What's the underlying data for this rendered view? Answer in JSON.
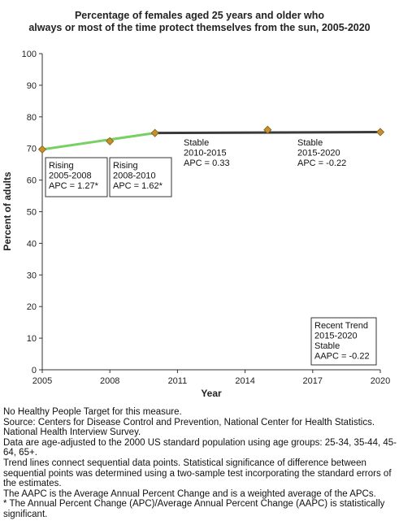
{
  "title": {
    "line1": "Percentage of females aged 25 years and older who",
    "line2": "always or most of the time protect themselves from the sun, 2005-2020"
  },
  "chart_data": {
    "type": "line",
    "xlabel": "Year",
    "ylabel": "Percent of adults",
    "xlim": [
      2005,
      2020
    ],
    "ylim": [
      0,
      100
    ],
    "xticks": [
      2005,
      2008,
      2011,
      2014,
      2017,
      2020
    ],
    "yticks": [
      0,
      10,
      20,
      30,
      40,
      50,
      60,
      70,
      80,
      90,
      100
    ],
    "grid": false,
    "points": {
      "x": [
        2005,
        2008,
        2010,
        2015,
        2020
      ],
      "y": [
        69.7,
        72.3,
        74.9,
        75.9,
        75.2
      ],
      "color": "#c8902a"
    },
    "trend_segments": [
      {
        "x": [
          2005,
          2010
        ],
        "y": [
          69.7,
          74.9
        ],
        "color": "#78d064"
      },
      {
        "x": [
          2010,
          2020
        ],
        "y": [
          74.9,
          75.2
        ],
        "color": "#3a3a3a"
      }
    ],
    "annotations": [
      {
        "lines": [
          "Rising",
          "2005-2008",
          "APC =  1.27*"
        ],
        "boxed": true
      },
      {
        "lines": [
          "Rising",
          "2008-2010",
          "APC =  1.62*"
        ],
        "boxed": true
      },
      {
        "lines": [
          "Stable",
          "2010-2015",
          "APC =  0.33"
        ],
        "boxed": true
      },
      {
        "lines": [
          "Stable",
          "2015-2020",
          "APC = -0.22"
        ],
        "boxed": true
      },
      {
        "lines": [
          "Recent Trend",
          "2015-2020",
          "Stable",
          "AAPC = -0.22"
        ],
        "boxed": true
      }
    ]
  },
  "footnotes": [
    "No Healthy People Target for this measure.",
    "Source: Centers for Disease Control and Prevention, National Center for Health Statistics. National Health Interview Survey.",
    "Data are age-adjusted to the 2000 US standard population using age groups: 25-34, 35-44, 45-64, 65+.",
    "Trend lines connect sequential data points. Statistical significance of difference between sequential points was determined using a two-sample test incorporating the standard errors of the estimates.",
    "The AAPC is the Average Annual Percent Change and is a weighted average of the APCs.",
    "* The Annual Percent Change (APC)/Average Annual Percent Change (AAPC) is statistically significant."
  ]
}
